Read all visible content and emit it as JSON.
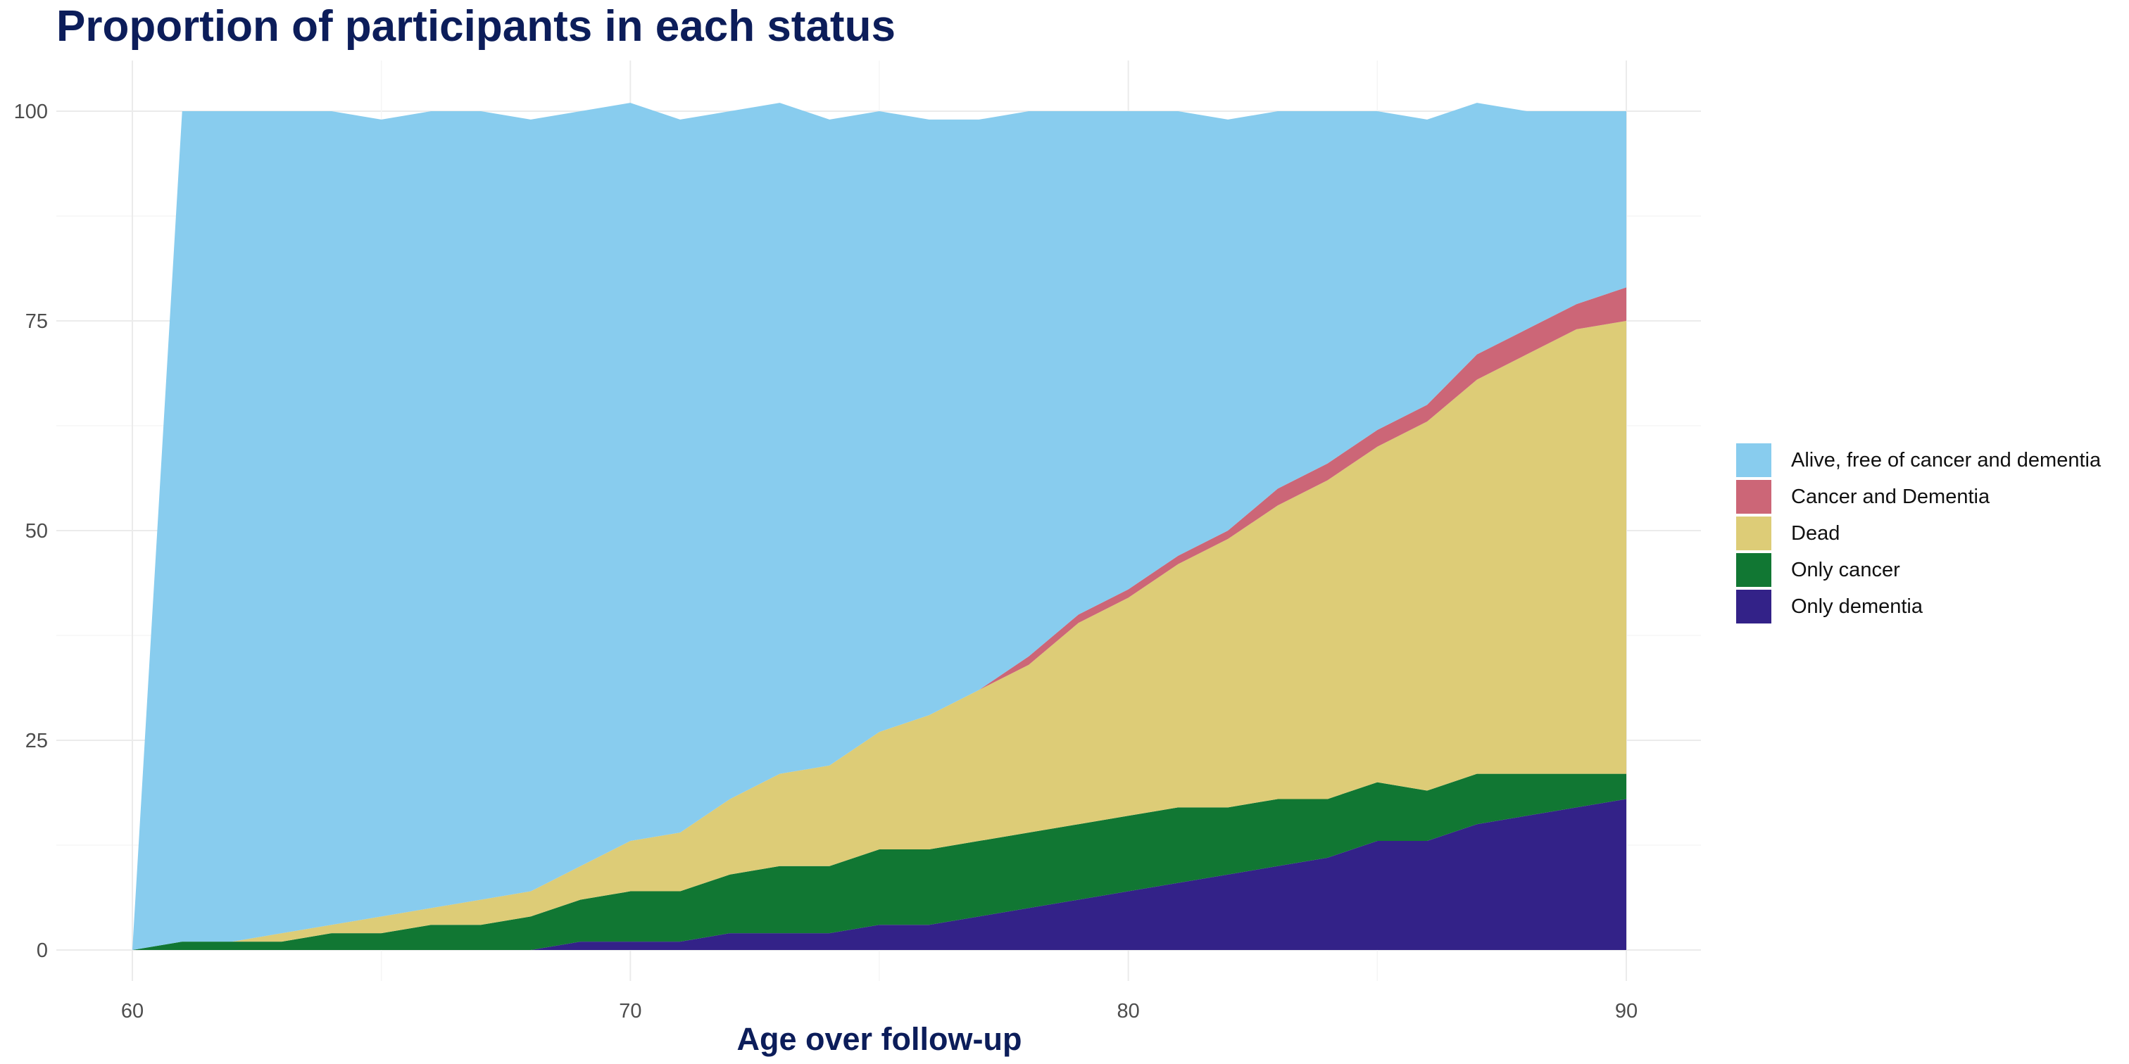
{
  "chart_data": {
    "type": "area",
    "stacked": true,
    "title": "Proportion of participants in each status",
    "xlabel": "Age over follow-up",
    "ylabel": "",
    "xlim": [
      60,
      90
    ],
    "ylim": [
      0,
      100
    ],
    "x_ticks": [
      60,
      70,
      80,
      90
    ],
    "y_ticks": [
      0,
      25,
      50,
      75,
      100
    ],
    "grid": true,
    "legend_position": "right",
    "x": [
      60,
      61,
      62,
      63,
      64,
      65,
      66,
      67,
      68,
      69,
      70,
      71,
      72,
      73,
      74,
      75,
      76,
      77,
      78,
      79,
      80,
      81,
      82,
      83,
      84,
      85,
      86,
      87,
      88,
      89,
      90
    ],
    "series": [
      {
        "name": "Only dementia",
        "color": "#332288",
        "values": [
          0,
          0,
          0,
          0,
          0,
          0,
          0,
          0,
          0,
          1,
          1,
          1,
          2,
          2,
          2,
          3,
          3,
          4,
          5,
          6,
          7,
          8,
          9,
          10,
          11,
          13,
          13,
          15,
          16,
          17,
          18
        ]
      },
      {
        "name": "Only cancer",
        "color": "#117733",
        "values": [
          0,
          1,
          1,
          1,
          2,
          2,
          3,
          3,
          4,
          5,
          6,
          6,
          7,
          8,
          8,
          9,
          9,
          9,
          9,
          9,
          9,
          9,
          8,
          8,
          7,
          7,
          6,
          6,
          5,
          4,
          3
        ]
      },
      {
        "name": "Dead",
        "color": "#DDCC77",
        "values": [
          0,
          0,
          0,
          1,
          1,
          2,
          2,
          3,
          3,
          4,
          6,
          7,
          9,
          11,
          12,
          14,
          16,
          18,
          20,
          24,
          26,
          29,
          32,
          35,
          38,
          40,
          44,
          47,
          50,
          53,
          54
        ]
      },
      {
        "name": "Cancer and Dementia",
        "color": "#CC6677",
        "values": [
          0,
          0,
          0,
          0,
          0,
          0,
          0,
          0,
          0,
          0,
          0,
          0,
          0,
          0,
          0,
          0,
          0,
          0,
          1,
          1,
          1,
          1,
          1,
          2,
          2,
          2,
          2,
          3,
          3,
          3,
          4
        ]
      },
      {
        "name": "Alive, free of cancer and dementia",
        "color": "#88CCEE",
        "values": [
          0,
          99,
          99,
          98,
          97,
          95,
          95,
          94,
          92,
          90,
          88,
          85,
          82,
          80,
          77,
          74,
          71,
          68,
          65,
          60,
          57,
          53,
          49,
          45,
          42,
          38,
          34,
          30,
          26,
          23,
          21
        ]
      }
    ],
    "legend_order": [
      "Alive, free of cancer and dementia",
      "Cancer and Dementia",
      "Dead",
      "Only cancer",
      "Only dementia"
    ]
  }
}
